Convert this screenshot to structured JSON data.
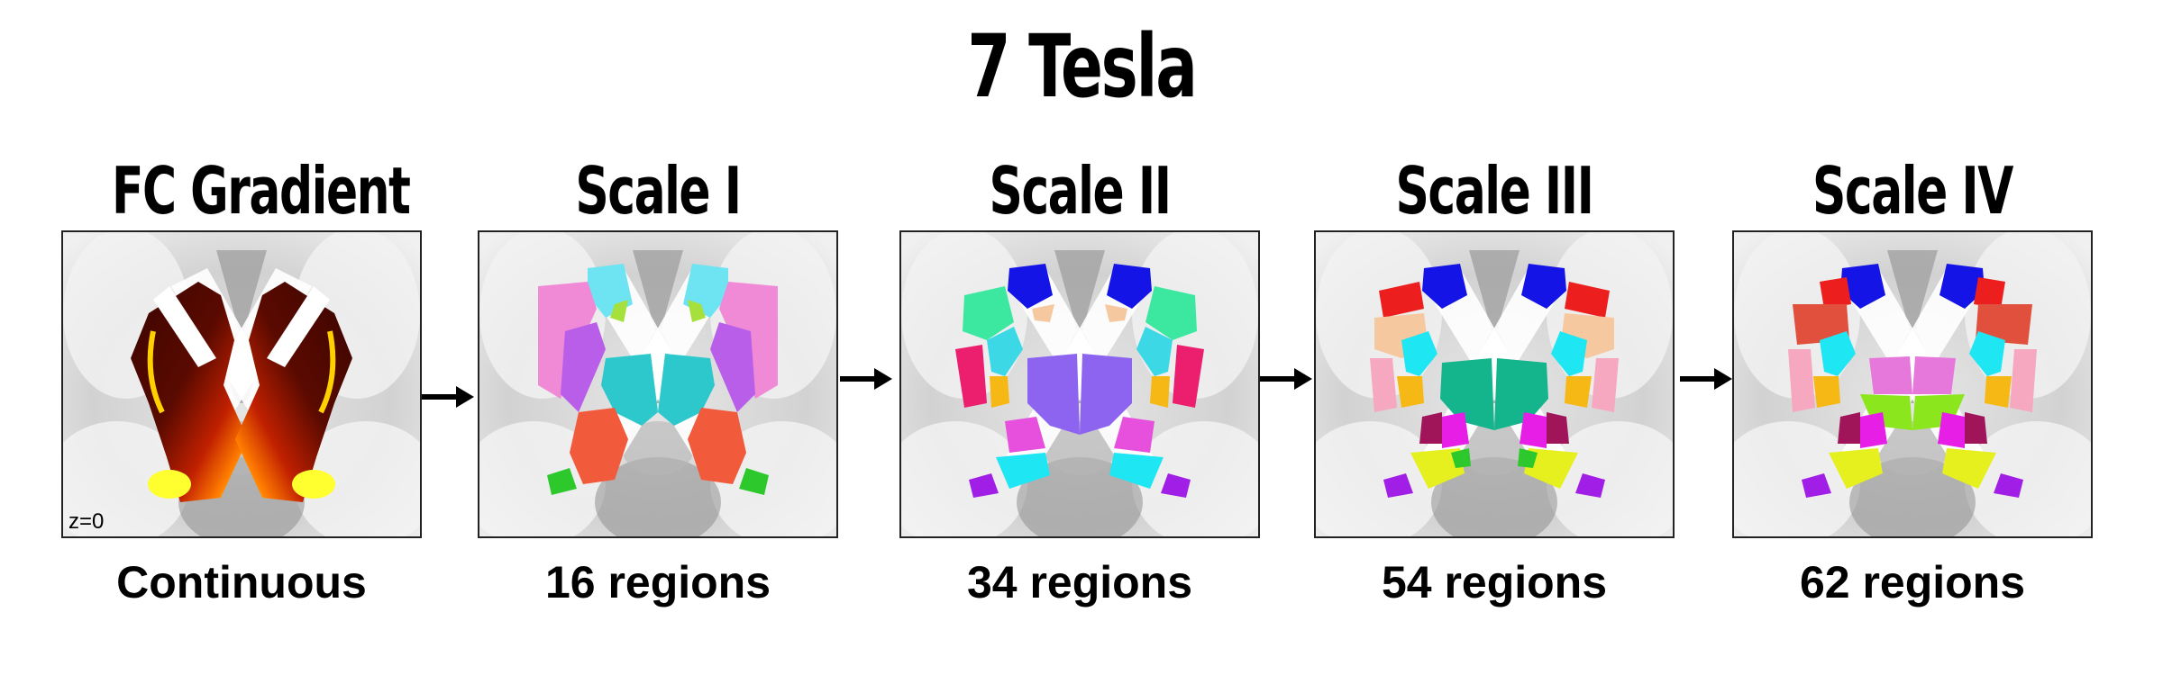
{
  "title": "7 Tesla",
  "panels": [
    {
      "title": "FC Gradient",
      "caption": "Continuous",
      "label": "z=0"
    },
    {
      "title": "Scale I",
      "caption": "16 regions"
    },
    {
      "title": "Scale II",
      "caption": "34 regions"
    },
    {
      "title": "Scale III",
      "caption": "54 regions"
    },
    {
      "title": "Scale IV",
      "caption": "62 regions"
    }
  ]
}
